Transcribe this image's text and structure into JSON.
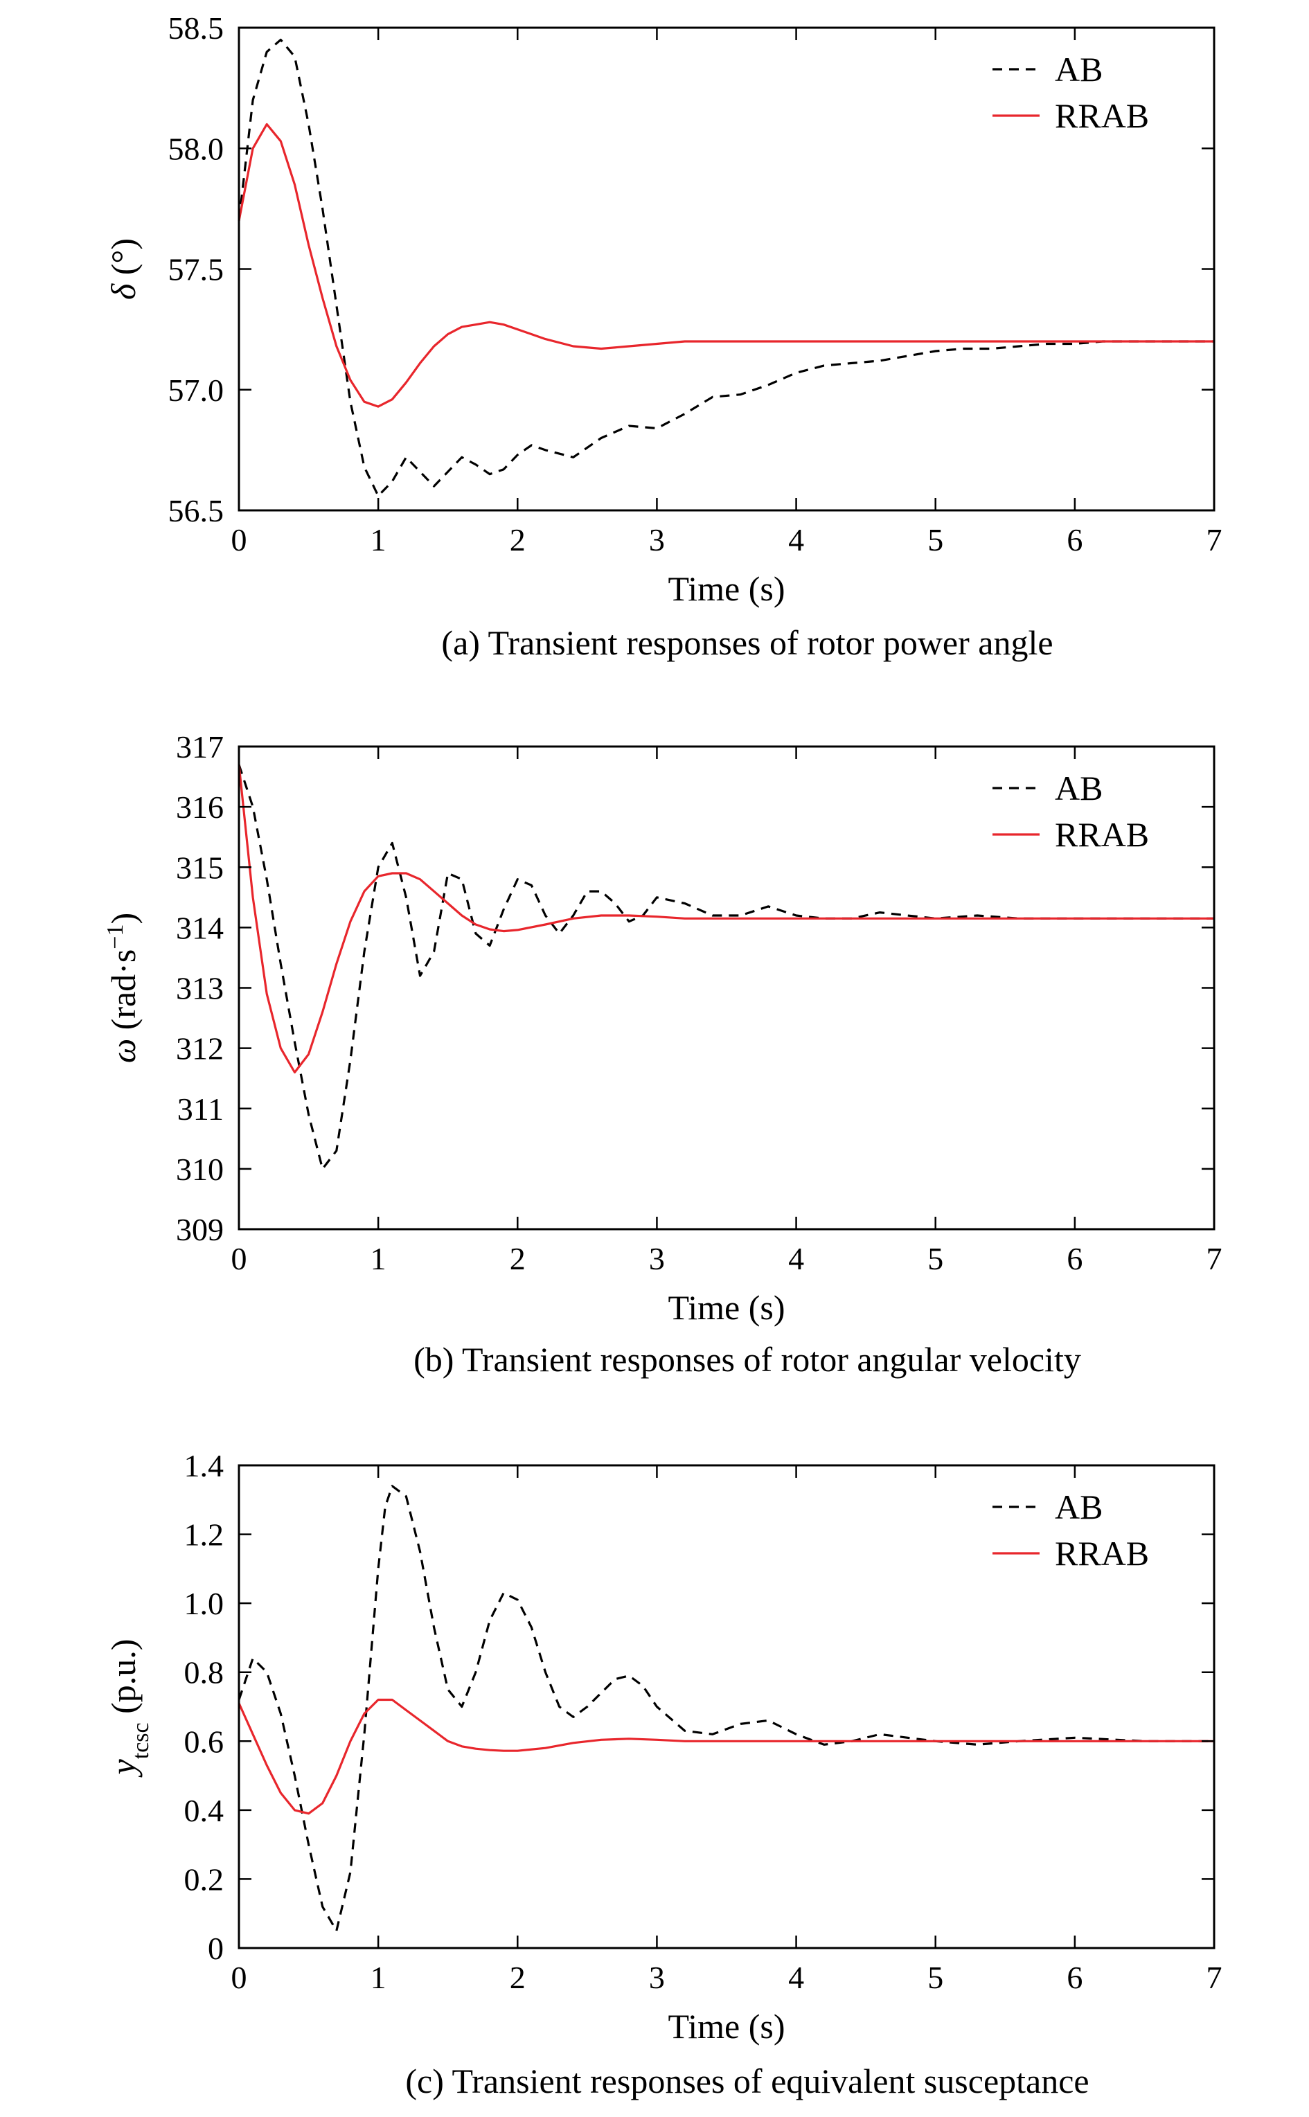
{
  "figure": {
    "background": "#ffffff",
    "colors": {
      "ab": "#000000",
      "rrab": "#e8262c",
      "axis": "#000000"
    }
  },
  "chart_data": [
    {
      "type": "line",
      "caption": "(a) Transient responses of rotor power angle",
      "xlabel": "Time (s)",
      "ylabel": {
        "symbol": "δ",
        "rest": " (°)"
      },
      "xlim": [
        0,
        7
      ],
      "ylim": [
        56.5,
        58.5
      ],
      "xticks": [
        "0",
        "1",
        "2",
        "3",
        "4",
        "5",
        "6",
        "7"
      ],
      "yticks": [
        "56.5",
        "57.0",
        "57.5",
        "58.0",
        "58.5"
      ],
      "grid": false,
      "legend_position": "top-right",
      "series": [
        {
          "name": "AB",
          "style": "dashed",
          "color": "#000000",
          "x": [
            0,
            0.1,
            0.2,
            0.3,
            0.4,
            0.5,
            0.6,
            0.7,
            0.8,
            0.9,
            1.0,
            1.1,
            1.2,
            1.3,
            1.4,
            1.5,
            1.6,
            1.7,
            1.8,
            1.9,
            2.0,
            2.1,
            2.2,
            2.4,
            2.6,
            2.8,
            3.0,
            3.2,
            3.4,
            3.6,
            3.8,
            4.0,
            4.2,
            4.4,
            4.6,
            4.8,
            5.0,
            5.2,
            5.4,
            5.6,
            5.8,
            6.0,
            6.2,
            6.4,
            6.6,
            6.8,
            7.0
          ],
          "y": [
            57.7,
            58.2,
            58.4,
            58.45,
            58.38,
            58.1,
            57.75,
            57.35,
            56.95,
            56.68,
            56.56,
            56.62,
            56.72,
            56.66,
            56.6,
            56.66,
            56.72,
            56.69,
            56.65,
            56.67,
            56.73,
            56.77,
            56.75,
            56.72,
            56.8,
            56.85,
            56.84,
            56.9,
            56.97,
            56.98,
            57.02,
            57.07,
            57.1,
            57.11,
            57.12,
            57.14,
            57.16,
            57.17,
            57.17,
            57.18,
            57.19,
            57.19,
            57.2,
            57.2,
            57.2,
            57.2,
            57.2
          ]
        },
        {
          "name": "RRAB",
          "style": "solid",
          "color": "#e8262c",
          "x": [
            0,
            0.1,
            0.2,
            0.3,
            0.4,
            0.5,
            0.6,
            0.7,
            0.8,
            0.9,
            1.0,
            1.1,
            1.2,
            1.3,
            1.4,
            1.5,
            1.6,
            1.7,
            1.8,
            1.9,
            2.0,
            2.2,
            2.4,
            2.6,
            2.8,
            3.0,
            3.2,
            3.4,
            3.6,
            3.8,
            4.0,
            4.5,
            5.0,
            5.5,
            6.0,
            6.5,
            7.0
          ],
          "y": [
            57.7,
            58.0,
            58.1,
            58.03,
            57.85,
            57.6,
            57.38,
            57.18,
            57.04,
            56.95,
            56.93,
            56.96,
            57.03,
            57.11,
            57.18,
            57.23,
            57.26,
            57.27,
            57.28,
            57.27,
            57.25,
            57.21,
            57.18,
            57.17,
            57.18,
            57.19,
            57.2,
            57.2,
            57.2,
            57.2,
            57.2,
            57.2,
            57.2,
            57.2,
            57.2,
            57.2,
            57.2
          ]
        }
      ]
    },
    {
      "type": "line",
      "caption": "(b) Transient responses of rotor angular velocity",
      "xlabel": "Time (s)",
      "ylabel": {
        "symbol": "ω",
        "rest": " (rad·s",
        "sup": "−1",
        "close": ")"
      },
      "xlim": [
        0,
        7
      ],
      "ylim": [
        309,
        317
      ],
      "xticks": [
        "0",
        "1",
        "2",
        "3",
        "4",
        "5",
        "6",
        "7"
      ],
      "yticks": [
        "309",
        "310",
        "311",
        "312",
        "313",
        "314",
        "315",
        "316",
        "317"
      ],
      "grid": false,
      "legend_position": "top-right",
      "series": [
        {
          "name": "AB",
          "style": "dashed",
          "color": "#000000",
          "x": [
            0,
            0.1,
            0.2,
            0.3,
            0.4,
            0.5,
            0.6,
            0.7,
            0.8,
            0.9,
            1.0,
            1.1,
            1.2,
            1.3,
            1.4,
            1.5,
            1.6,
            1.7,
            1.8,
            1.9,
            2.0,
            2.1,
            2.2,
            2.3,
            2.4,
            2.5,
            2.6,
            2.7,
            2.8,
            2.9,
            3.0,
            3.2,
            3.4,
            3.6,
            3.8,
            4.0,
            4.2,
            4.4,
            4.6,
            4.8,
            5.0,
            5.3,
            5.6,
            6.0,
            6.5,
            7.0
          ],
          "y": [
            316.7,
            316.0,
            314.8,
            313.4,
            312.1,
            310.9,
            310.0,
            310.3,
            311.8,
            313.6,
            315.0,
            315.4,
            314.5,
            313.2,
            313.6,
            314.9,
            314.8,
            313.9,
            313.7,
            314.3,
            314.8,
            314.7,
            314.2,
            313.9,
            314.2,
            314.6,
            314.6,
            314.4,
            314.1,
            314.2,
            314.5,
            314.4,
            314.2,
            314.2,
            314.35,
            314.2,
            314.15,
            314.15,
            314.25,
            314.2,
            314.15,
            314.2,
            314.15,
            314.15,
            314.15,
            314.15
          ]
        },
        {
          "name": "RRAB",
          "style": "solid",
          "color": "#e8262c",
          "x": [
            0,
            0.1,
            0.2,
            0.3,
            0.4,
            0.5,
            0.6,
            0.7,
            0.8,
            0.9,
            1.0,
            1.1,
            1.2,
            1.3,
            1.4,
            1.5,
            1.6,
            1.7,
            1.8,
            1.9,
            2.0,
            2.2,
            2.4,
            2.6,
            2.8,
            3.0,
            3.2,
            3.5,
            4.0,
            4.5,
            5.0,
            5.5,
            6.0,
            6.5,
            7.0
          ],
          "y": [
            316.7,
            314.5,
            312.9,
            312.0,
            311.6,
            311.9,
            312.6,
            313.4,
            314.1,
            314.6,
            314.85,
            314.9,
            314.9,
            314.8,
            314.6,
            314.4,
            314.2,
            314.05,
            313.97,
            313.94,
            313.96,
            314.05,
            314.15,
            314.2,
            314.2,
            314.18,
            314.15,
            314.15,
            314.15,
            314.15,
            314.15,
            314.15,
            314.15,
            314.15,
            314.15
          ]
        }
      ]
    },
    {
      "type": "line",
      "caption": "(c) Transient responses of equivalent susceptance",
      "xlabel": "Time (s)",
      "ylabel": {
        "symbol": "y",
        "sub": "tcsc",
        "rest": " (p.u.)"
      },
      "xlim": [
        0,
        7
      ],
      "ylim": [
        0,
        1.4
      ],
      "xticks": [
        "0",
        "1",
        "2",
        "3",
        "4",
        "5",
        "6",
        "7"
      ],
      "yticks": [
        "0",
        "0.2",
        "0.4",
        "0.6",
        "0.8",
        "1.0",
        "1.2",
        "1.4"
      ],
      "grid": false,
      "legend_position": "top-right",
      "series": [
        {
          "name": "AB",
          "style": "dashed",
          "color": "#000000",
          "x": [
            0,
            0.1,
            0.2,
            0.3,
            0.4,
            0.5,
            0.6,
            0.7,
            0.8,
            0.9,
            1.0,
            1.05,
            1.1,
            1.2,
            1.3,
            1.4,
            1.5,
            1.6,
            1.7,
            1.8,
            1.9,
            2.0,
            2.1,
            2.2,
            2.3,
            2.4,
            2.5,
            2.6,
            2.7,
            2.8,
            2.9,
            3.0,
            3.2,
            3.4,
            3.6,
            3.8,
            4.0,
            4.2,
            4.4,
            4.6,
            4.8,
            5.0,
            5.3,
            5.6,
            6.0,
            6.5,
            7.0
          ],
          "y": [
            0.72,
            0.84,
            0.8,
            0.68,
            0.5,
            0.3,
            0.12,
            0.05,
            0.22,
            0.62,
            1.1,
            1.28,
            1.34,
            1.31,
            1.15,
            0.93,
            0.75,
            0.7,
            0.8,
            0.95,
            1.03,
            1.01,
            0.93,
            0.8,
            0.7,
            0.67,
            0.7,
            0.74,
            0.78,
            0.79,
            0.76,
            0.7,
            0.63,
            0.62,
            0.65,
            0.66,
            0.62,
            0.59,
            0.6,
            0.62,
            0.61,
            0.6,
            0.59,
            0.6,
            0.61,
            0.6,
            0.6
          ]
        },
        {
          "name": "RRAB",
          "style": "solid",
          "color": "#e8262c",
          "x": [
            0,
            0.1,
            0.2,
            0.3,
            0.4,
            0.5,
            0.6,
            0.7,
            0.8,
            0.9,
            1.0,
            1.1,
            1.2,
            1.3,
            1.4,
            1.5,
            1.6,
            1.7,
            1.8,
            1.9,
            2.0,
            2.2,
            2.4,
            2.6,
            2.8,
            3.0,
            3.2,
            3.5,
            4.0,
            4.5,
            5.0,
            5.5,
            6.0,
            6.5,
            7.0
          ],
          "y": [
            0.71,
            0.62,
            0.53,
            0.45,
            0.4,
            0.39,
            0.42,
            0.5,
            0.6,
            0.68,
            0.72,
            0.72,
            0.69,
            0.66,
            0.63,
            0.6,
            0.585,
            0.578,
            0.574,
            0.572,
            0.572,
            0.58,
            0.595,
            0.604,
            0.607,
            0.604,
            0.6,
            0.6,
            0.6,
            0.6,
            0.6,
            0.6,
            0.6,
            0.6,
            0.6
          ]
        }
      ]
    }
  ]
}
